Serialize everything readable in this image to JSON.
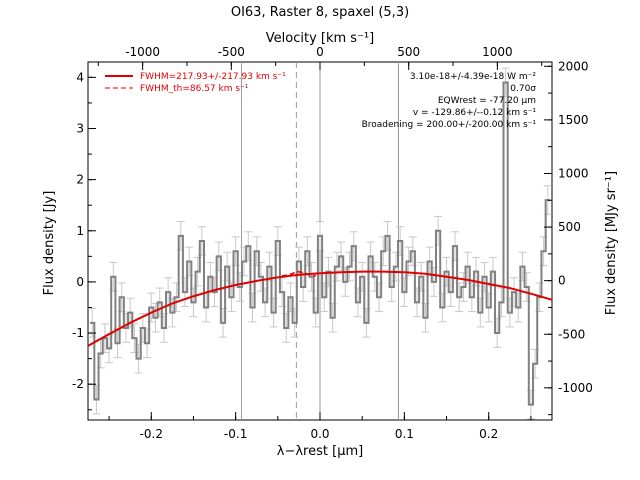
{
  "chart_data": {
    "type": "line",
    "title": "OI63, Raster 8, spaxel (5,3)",
    "xlabel": "λ−λrest [μm]",
    "ylabel": "Flux density [Jy]",
    "top_xlabel": "Velocity [km s⁻¹]",
    "right_ylabel": "Flux density [MJy sr⁻¹]",
    "xlim": [
      -0.275,
      0.275
    ],
    "ylim": [
      -2.7,
      4.3
    ],
    "right_ylim": [
      -1300,
      2040
    ],
    "top_xlim": [
      -1308,
      1308
    ],
    "x_ticks": [
      "-0.2",
      "-0.1",
      "0.0",
      "0.1",
      "0.2"
    ],
    "y_ticks": [
      "-2",
      "-1",
      "0",
      "1",
      "2",
      "3",
      "4"
    ],
    "top_ticks": [
      "-1000",
      "-500",
      "0",
      "500",
      "1000"
    ],
    "right_ticks": [
      "-1000",
      "-500",
      "0",
      "500",
      "1000",
      "1500",
      "2000"
    ],
    "vertical_lines": {
      "solid": [
        -0.093,
        0.0,
        0.093
      ],
      "dashed": [
        -0.028
      ]
    },
    "legend": [
      {
        "label": "FWHM=217.93+/-217.93 km s⁻¹",
        "style": "solid",
        "color": "#e00000"
      },
      {
        "label": "FWHM_th=86.57 km s⁻¹",
        "style": "dashed",
        "color": "#e00000"
      }
    ],
    "annotations": [
      "3.10e-18+/-4.39e-18 W m⁻²",
      "0.70σ",
      "EQWrest = -77.20 μm",
      "v = -129.86+/--0.12 km s⁻¹",
      "Broadening = 200.00+/-200.00 km s⁻¹"
    ],
    "series": [
      {
        "style": "histogram",
        "color": "#808080",
        "x": [
          -0.27,
          -0.265,
          -0.26,
          -0.255,
          -0.25,
          -0.245,
          -0.24,
          -0.235,
          -0.23,
          -0.225,
          -0.22,
          -0.215,
          -0.21,
          -0.205,
          -0.2,
          -0.195,
          -0.19,
          -0.185,
          -0.18,
          -0.175,
          -0.17,
          -0.165,
          -0.16,
          -0.155,
          -0.15,
          -0.145,
          -0.14,
          -0.135,
          -0.13,
          -0.125,
          -0.12,
          -0.115,
          -0.11,
          -0.105,
          -0.1,
          -0.095,
          -0.09,
          -0.085,
          -0.08,
          -0.075,
          -0.07,
          -0.065,
          -0.06,
          -0.055,
          -0.05,
          -0.045,
          -0.04,
          -0.035,
          -0.03,
          -0.025,
          -0.02,
          -0.015,
          -0.01,
          -0.005,
          0.0,
          0.005,
          0.01,
          0.015,
          0.02,
          0.025,
          0.03,
          0.035,
          0.04,
          0.045,
          0.05,
          0.055,
          0.06,
          0.065,
          0.07,
          0.075,
          0.08,
          0.085,
          0.09,
          0.095,
          0.1,
          0.105,
          0.11,
          0.115,
          0.12,
          0.125,
          0.13,
          0.135,
          0.14,
          0.145,
          0.15,
          0.155,
          0.16,
          0.165,
          0.17,
          0.175,
          0.18,
          0.185,
          0.19,
          0.195,
          0.2,
          0.205,
          0.21,
          0.215,
          0.22,
          0.225,
          0.23,
          0.235,
          0.24,
          0.245,
          0.25,
          0.255,
          0.26,
          0.265,
          0.27
        ],
        "values": [
          -0.8,
          -2.3,
          -1.4,
          -1.1,
          -1.3,
          0.1,
          -1.2,
          -0.3,
          -0.9,
          -0.6,
          -1.1,
          -1.5,
          -0.9,
          -1.2,
          -0.5,
          -0.7,
          -0.4,
          -0.9,
          -0.2,
          -0.6,
          -0.3,
          0.9,
          -0.2,
          0.4,
          -0.4,
          0.2,
          0.8,
          -0.5,
          0.1,
          -0.2,
          0.5,
          -0.8,
          0.3,
          -0.3,
          0.6,
          -0.1,
          0.4,
          0.7,
          -0.5,
          0.6,
          0.1,
          -0.4,
          0.3,
          -0.6,
          0.8,
          -0.2,
          -0.9,
          -0.3,
          -0.8,
          0.4,
          -0.1,
          0.6,
          0.1,
          -0.6,
          0.9,
          -0.3,
          0.2,
          -0.7,
          0.3,
          0.5,
          0.0,
          0.3,
          0.7,
          -0.4,
          0.1,
          -0.8,
          0.5,
          0.1,
          -0.3,
          0.6,
          0.9,
          -0.1,
          0.3,
          0.8,
          -0.2,
          0.4,
          0.6,
          -0.4,
          0.1,
          -0.7,
          0.4,
          0.0,
          1.0,
          -0.5,
          0.2,
          -0.2,
          0.7,
          -0.3,
          -0.1,
          0.3,
          -0.3,
          0.2,
          -0.6,
          0.1,
          -0.5,
          0.2,
          -1.0,
          -0.4,
          3.9,
          -0.6,
          -0.2,
          -0.5,
          0.3,
          -0.1,
          -2.4,
          -1.6,
          -0.3,
          0.6,
          1.6
        ]
      },
      {
        "name": "FWHM=217.93+/-217.93 km s⁻¹",
        "style": "solid",
        "color": "#e00000",
        "x": [
          -0.275,
          -0.25,
          -0.225,
          -0.2,
          -0.175,
          -0.15,
          -0.125,
          -0.1,
          -0.075,
          -0.05,
          -0.025,
          0.0,
          0.025,
          0.05,
          0.075,
          0.1,
          0.125,
          0.15,
          0.175,
          0.2,
          0.225,
          0.25,
          0.275
        ],
        "values": [
          -1.25,
          -1.02,
          -0.8,
          -0.6,
          -0.42,
          -0.28,
          -0.16,
          -0.06,
          0.02,
          0.09,
          0.14,
          0.17,
          0.19,
          0.2,
          0.2,
          0.19,
          0.16,
          0.1,
          0.04,
          -0.04,
          -0.12,
          -0.23,
          -0.35
        ]
      },
      {
        "name": "FWHM_th=86.57 km s⁻¹",
        "style": "dashed",
        "color": "#e00000",
        "x": [
          -0.045,
          -0.04,
          -0.035,
          -0.03,
          -0.025,
          -0.02,
          -0.015,
          -0.01,
          -0.005
        ],
        "values": [
          0.12,
          0.13,
          0.15,
          0.18,
          0.2,
          0.18,
          0.15,
          0.13,
          0.12
        ]
      }
    ]
  }
}
